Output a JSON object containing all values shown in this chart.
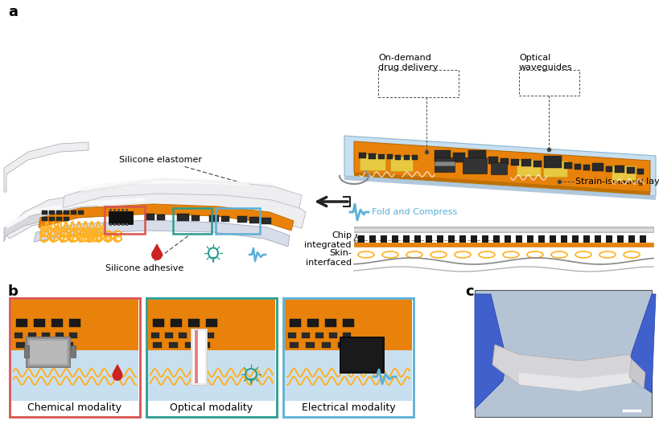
{
  "bg_color": "#ffffff",
  "panel_a_label": "a",
  "panel_b_label": "b",
  "panel_c_label": "c",
  "ann_silicone_elastomer": "Silicone elastomer",
  "ann_silicone_adhesive": "Silicone adhesive",
  "ann_optical_waveguides": "Optical\nwaveguides",
  "ann_on_demand": "On-demand\ndrug delivery",
  "ann_strain_isolating": "Strain-isolating layer",
  "ann_fold_compress": "Fold and Compress",
  "ann_chip_integrated": "Chip\nintegrated",
  "ann_skin_interfaced": "Skin-\ninterfaced",
  "modality_labels": [
    "Chemical modality",
    "Optical modality",
    "Electrical modality"
  ],
  "modality_box_colors": [
    "#d9534f",
    "#2a9d8f",
    "#5bafd6"
  ],
  "orange_pcb": "#e8820a",
  "light_blue": "#c8dff0",
  "silicone_white": "#eeeef0",
  "silicone_gray": "#d0d0d4",
  "cyan_color": "#2a9d8f",
  "red_color": "#d9534f",
  "blue_color": "#5bafd6",
  "dark_comp": "#2a2a2a",
  "fold_color": "#5bafd6",
  "text_color": "#111111",
  "dashed_color": "#444444",
  "yellow_pad": "#e8c840",
  "annotation_fs": 8.0,
  "label_fs": 13
}
